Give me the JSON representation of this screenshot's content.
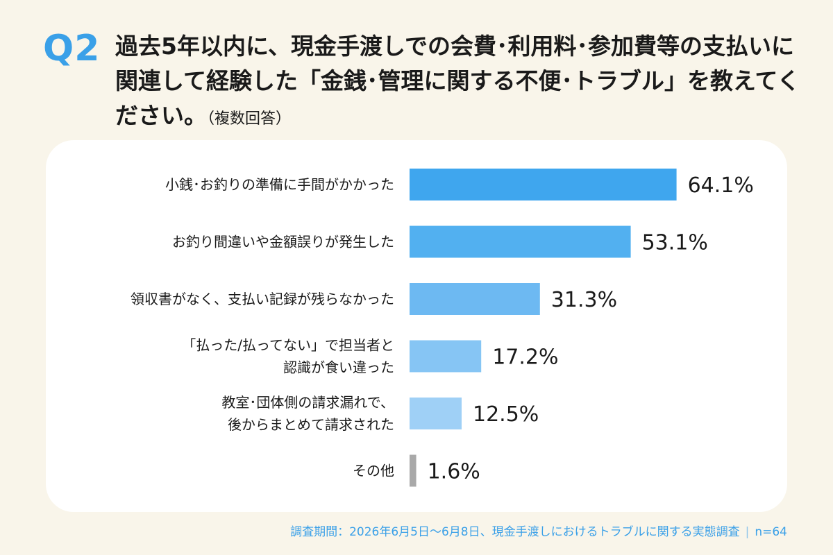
{
  "question": {
    "badge": "Q2",
    "text": "過去5年以内に、現金手渡しでの会費･利用料･参加費等の支払いに関連して経験した「金銭･管理に関する不便･トラブル」を教えてください。",
    "note": "（複数回答）"
  },
  "footer": {
    "survey": "調査期間：2026年6月5日～6月8日、現金手渡しにおけるトラブルに関する実態調査",
    "n": "n=64"
  },
  "chart_data": {
    "type": "bar",
    "orientation": "horizontal",
    "categories": [
      [
        "小銭･お釣りの準備に手間がかかった"
      ],
      [
        "お釣り間違いや金額誤りが発生した"
      ],
      [
        "領収書がなく、支払い記録が残らなかった"
      ],
      [
        "「払った/払ってない」で担当者と",
        "認識が食い違った"
      ],
      [
        "教室･団体側の請求漏れで、",
        "後からまとめて請求された"
      ],
      [
        "その他"
      ]
    ],
    "values": [
      64.1,
      53.1,
      31.3,
      17.2,
      12.5,
      1.6
    ],
    "value_labels": [
      "64.1%",
      "53.1%",
      "31.3%",
      "17.2%",
      "12.5%",
      "1.6%"
    ],
    "bar_colors": [
      "#3fa6ee",
      "#52b0f0",
      "#6db9f2",
      "#86c5f4",
      "#9fd0f6",
      "#a9a9a9"
    ],
    "xlim": [
      0,
      100
    ],
    "grid": false,
    "legend": "none"
  }
}
